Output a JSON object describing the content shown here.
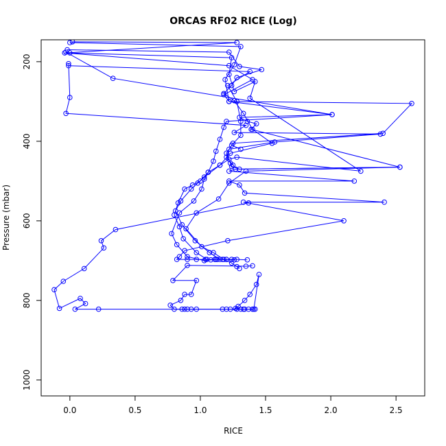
{
  "chart_data": {
    "type": "scatter",
    "title": "ORCAS RF02 RICE (Log)",
    "xlabel": "RICE",
    "ylabel": "Pressure (mbar)",
    "xlim": [
      -0.22,
      2.72
    ],
    "ylim": [
      1040,
      145
    ],
    "y_reversed": true,
    "grid": false,
    "x_ticks": [
      0.0,
      0.5,
      1.0,
      1.5,
      2.0,
      2.5
    ],
    "x_tick_labels": [
      "0.0",
      "0.5",
      "1.0",
      "1.5",
      "2.0",
      "2.5"
    ],
    "y_ticks": [
      200,
      400,
      600,
      800,
      1000
    ],
    "y_tick_labels": [
      "200",
      "400",
      "600",
      "800",
      "1000"
    ],
    "colors": {
      "series": "#0000ff",
      "axis": "#000000"
    },
    "marker": "open-circle",
    "line_connected": true,
    "series": [
      {
        "x": [
          0.02,
          1.28,
          -0.04,
          1.22,
          1.4,
          1.18,
          1.22,
          2.62,
          2.4,
          1.25,
          1.2,
          1.23,
          1.24,
          1.3,
          2.53,
          1.35,
          1.22,
          1.14,
          0.97,
          0.89,
          1.01,
          1.1,
          1.18,
          1.24,
          1.28,
          1.3
        ],
        "y": [
          150,
          152,
          178,
          210,
          245,
          283,
          300,
          305,
          380,
          405,
          430,
          455,
          463,
          470,
          465,
          475,
          505,
          545,
          580,
          620,
          665,
          680,
          697,
          706,
          715,
          720
        ]
      },
      {
        "x": [
          0.0,
          1.31,
          1.26,
          1.19,
          1.22,
          2.01,
          1.2,
          1.18,
          1.15,
          1.12,
          1.1,
          1.06,
          1.03,
          1.01,
          0.95,
          0.84,
          0.78,
          0.82,
          0.9,
          1.03,
          1.08,
          1.13,
          1.2,
          1.26
        ],
        "y": [
          152,
          162,
          208,
          245,
          300,
          333,
          350,
          365,
          395,
          425,
          450,
          478,
          495,
          520,
          550,
          580,
          632,
          660,
          690,
          700,
          698,
          697,
          697,
          698
        ]
      },
      {
        "x": [
          -0.02,
          1.22,
          1.3,
          1.47,
          1.28,
          1.24,
          1.18,
          1.26,
          1.33,
          1.4,
          1.55,
          1.23,
          1.15,
          1.03,
          0.98,
          0.93,
          0.85,
          0.81,
          0.86,
          0.96,
          1.07,
          1.15,
          1.2,
          1.28,
          1.36
        ],
        "y": [
          170,
          176,
          212,
          220,
          240,
          260,
          280,
          298,
          330,
          370,
          405,
          430,
          460,
          490,
          505,
          520,
          550,
          575,
          610,
          650,
          680,
          697,
          697,
          697,
          698
        ]
      },
      {
        "x": [
          0.0,
          1.24,
          1.22,
          1.26,
          1.42,
          1.38,
          2.23,
          1.28,
          1.22,
          1.15,
          1.06,
          1.0,
          0.94,
          0.88,
          0.83,
          0.8,
          0.84,
          0.87,
          0.97,
          1.05,
          1.11,
          1.17,
          1.24
        ],
        "y": [
          178,
          190,
          232,
          275,
          250,
          292,
          475,
          440,
          445,
          460,
          478,
          500,
          510,
          520,
          555,
          585,
          615,
          645,
          680,
          697,
          697,
          697,
          697
        ]
      },
      {
        "x": [
          -0.03,
          0.33,
          2.01,
          1.3,
          1.36,
          1.43,
          1.39,
          2.53,
          1.27,
          1.22,
          2.18,
          1.22,
          1.3,
          1.34,
          2.41,
          1.33,
          2.1,
          1.21,
          0.88,
          0.84,
          0.82,
          0.9,
          0.97,
          1.04,
          1.12
        ],
        "y": [
          176,
          242,
          333,
          340,
          350,
          356,
          370,
          465,
          470,
          475,
          500,
          500,
          510,
          530,
          553,
          553,
          600,
          650,
          675,
          690,
          697,
          697,
          697,
          697,
          697
        ]
      },
      {
        "x": [
          -0.01,
          0.0,
          -0.03,
          1.35,
          1.26,
          2.38,
          1.57,
          1.22,
          1.2,
          1.25
        ],
        "y": [
          205,
          290,
          330,
          360,
          378,
          382,
          402,
          420,
          440,
          460
        ]
      },
      {
        "x": [
          -0.01,
          1.38,
          1.21,
          1.28,
          1.31,
          1.31,
          1.24,
          1.31
        ],
        "y": [
          210,
          225,
          260,
          300,
          350,
          385,
          410,
          420
        ]
      },
      {
        "x": [
          1.37,
          0.35,
          0.24,
          0.26,
          0.11,
          -0.05,
          -0.12,
          -0.08,
          0.08,
          0.12,
          0.04,
          0.22,
          0.88,
          1.41,
          1.45,
          1.43,
          1.38,
          1.34,
          1.29,
          1.27,
          1.28
        ],
        "y": [
          555,
          622,
          650,
          668,
          720,
          752,
          773,
          820,
          795,
          808,
          822,
          822,
          822,
          822,
          735,
          760,
          785,
          800,
          815,
          820,
          822
        ]
      },
      {
        "x": [
          1.4,
          1.35,
          0.9,
          0.79,
          0.97,
          0.93,
          0.88,
          0.85,
          0.77,
          0.8,
          0.86,
          0.9,
          0.93,
          0.97,
          1.17,
          1.2,
          1.23,
          1.31,
          1.33,
          1.34,
          1.37,
          1.4,
          1.42
        ],
        "y": [
          713,
          714,
          712,
          750,
          750,
          785,
          785,
          800,
          812,
          822,
          822,
          822,
          822,
          822,
          822,
          822,
          822,
          822,
          822,
          822,
          822,
          822,
          822
        ]
      }
    ]
  }
}
